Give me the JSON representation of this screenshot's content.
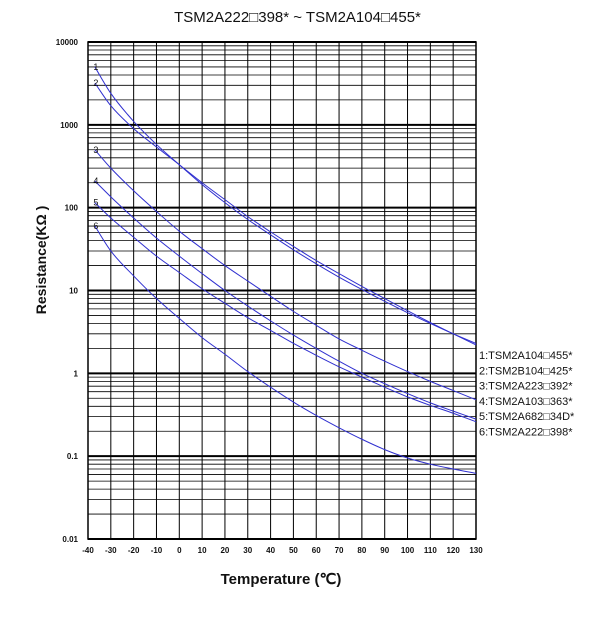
{
  "chart_data": {
    "type": "line",
    "title": "TSM2A222□398* ~ TSM2A104□455*",
    "xlabel": "Temperature (℃)",
    "ylabel": "Resistance(KΩ )",
    "y_scale": "log",
    "xlim": [
      -40,
      130
    ],
    "ylim": [
      0.01,
      10000
    ],
    "grid": true,
    "legend_placement": "right",
    "x_ticks": [
      "-40",
      "-30",
      "-20",
      "-10",
      "0",
      "10",
      "20",
      "30",
      "40",
      "50",
      "60",
      "70",
      "80",
      "90",
      "100",
      "110",
      "120",
      "130"
    ],
    "y_ticks": [
      "10000",
      "1000",
      "100",
      "10",
      "1",
      "0.1",
      "0.01"
    ],
    "series": [
      {
        "name": "1:TSM2A104□455*",
        "label": "1",
        "x": [
          -37,
          -30,
          -20,
          -10,
          0,
          10,
          20,
          30,
          40,
          50,
          60,
          70,
          80,
          90,
          100,
          110,
          120,
          130
        ],
        "y": [
          5000,
          2400,
          1100,
          580,
          330,
          190,
          115,
          72,
          47,
          31,
          21,
          14.5,
          10.3,
          7.4,
          5.4,
          4.0,
          3.0,
          2.3
        ]
      },
      {
        "name": "2:TSM2B104□425*",
        "label": "2",
        "x": [
          -37,
          -30,
          -20,
          -10,
          0,
          10,
          20,
          30,
          40,
          50,
          60,
          70,
          80,
          90,
          100,
          110,
          120,
          130
        ],
        "y": [
          3200,
          1700,
          900,
          540,
          330,
          200,
          125,
          78,
          51,
          34,
          23,
          16,
          11.2,
          8.0,
          5.7,
          4.1,
          3.0,
          2.2
        ]
      },
      {
        "name": "3:TSM2A223□392*",
        "label": "3",
        "x": [
          -37,
          -30,
          -20,
          -10,
          0,
          10,
          20,
          30,
          40,
          50,
          60,
          70,
          80,
          90,
          100,
          110,
          120,
          130
        ],
        "y": [
          500,
          300,
          160,
          90,
          52,
          32,
          20,
          13,
          8.5,
          5.6,
          3.8,
          2.6,
          1.9,
          1.4,
          1.05,
          0.8,
          0.62,
          0.48
        ]
      },
      {
        "name": "4:TSM2A103□363*",
        "label": "4",
        "x": [
          -37,
          -30,
          -20,
          -10,
          0,
          10,
          20,
          30,
          40,
          50,
          60,
          70,
          80,
          90,
          100,
          110,
          120,
          130
        ],
        "y": [
          210,
          135,
          75,
          43,
          26,
          16,
          10,
          6.5,
          4.3,
          2.9,
          2.0,
          1.4,
          1.0,
          0.75,
          0.57,
          0.44,
          0.35,
          0.28
        ]
      },
      {
        "name": "5:TSM2A682□34D*",
        "label": "5",
        "x": [
          -37,
          -30,
          -20,
          -10,
          0,
          10,
          20,
          30,
          40,
          50,
          60,
          70,
          80,
          90,
          100,
          110,
          120,
          130
        ],
        "y": [
          115,
          75,
          44,
          26,
          16.5,
          10.5,
          7.0,
          4.7,
          3.3,
          2.3,
          1.65,
          1.2,
          0.9,
          0.68,
          0.52,
          0.41,
          0.33,
          0.26
        ]
      },
      {
        "name": "6:TSM2A222□398*",
        "label": "6",
        "x": [
          -37,
          -30,
          -20,
          -10,
          0,
          10,
          20,
          30,
          40,
          50,
          60,
          70,
          80,
          90,
          100,
          110,
          120,
          130
        ],
        "y": [
          60,
          30,
          15,
          8.0,
          4.6,
          2.7,
          1.7,
          1.05,
          0.68,
          0.45,
          0.31,
          0.22,
          0.16,
          0.12,
          0.095,
          0.08,
          0.07,
          0.062
        ]
      }
    ],
    "colors": {
      "curve": "#3030d0",
      "grid": "#000000",
      "text": "#111111"
    }
  }
}
